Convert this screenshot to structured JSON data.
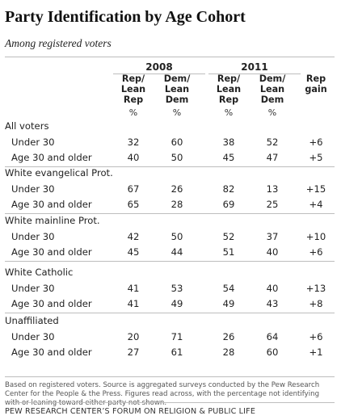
{
  "title": "Party Identification by Age Cohort",
  "subtitle": "Among registered voters",
  "years": [
    "2008",
    "2011"
  ],
  "column_headers": [
    {
      "lines": [
        "Rep/",
        "Lean",
        "Rep"
      ]
    },
    {
      "lines": [
        "Dem/",
        "Lean",
        "Dem"
      ]
    },
    {
      "lines": [
        "Rep/",
        "Lean",
        "Rep"
      ]
    },
    {
      "lines": [
        "Dem/",
        "Lean",
        "Dem"
      ]
    },
    {
      "lines": [
        "Rep",
        "gain"
      ]
    }
  ],
  "percent_symbol": "%",
  "groups": [
    {
      "name": "All voters",
      "rows": [
        {
          "label": "Under 30",
          "values": [
            "32",
            "60",
            "38",
            "52"
          ],
          "gain": "+6"
        },
        {
          "label": "Age 30 and older",
          "values": [
            "40",
            "50",
            "45",
            "47"
          ],
          "gain": "+5"
        }
      ]
    },
    {
      "name": "White evangelical Prot.",
      "rows": [
        {
          "label": "Under 30",
          "values": [
            "67",
            "26",
            "82",
            "13"
          ],
          "gain": "+15"
        },
        {
          "label": "Age 30 and older",
          "values": [
            "65",
            "28",
            "69",
            "25"
          ],
          "gain": "+4"
        }
      ]
    },
    {
      "name": "White mainline Prot.",
      "rows": [
        {
          "label": "Under 30",
          "values": [
            "42",
            "50",
            "52",
            "37"
          ],
          "gain": "+10"
        },
        {
          "label": "Age 30 and older",
          "values": [
            "45",
            "44",
            "51",
            "40"
          ],
          "gain": "+6"
        }
      ]
    },
    {
      "name": "White Catholic",
      "rows": [
        {
          "label": "Under 30",
          "values": [
            "41",
            "53",
            "54",
            "40"
          ],
          "gain": "+13"
        },
        {
          "label": "Age 30 and older",
          "values": [
            "41",
            "49",
            "49",
            "43"
          ],
          "gain": "+8"
        }
      ]
    },
    {
      "name": "Unaffiliated",
      "rows": [
        {
          "label": "Under 30",
          "values": [
            "20",
            "71",
            "26",
            "64"
          ],
          "gain": "+6"
        },
        {
          "label": "Age 30 and older",
          "values": [
            "27",
            "61",
            "28",
            "60"
          ],
          "gain": "+1"
        }
      ]
    }
  ],
  "footnote": "Based on registered voters. Source is aggregated surveys conducted by the Pew Research Center for the People & the Press. Figures read across, with the percentage not identifying with or leaning toward either party not shown.",
  "source_line": "PEW RESEARCH CENTER’S FORUM ON RELIGION & PUBLIC LIFE"
}
